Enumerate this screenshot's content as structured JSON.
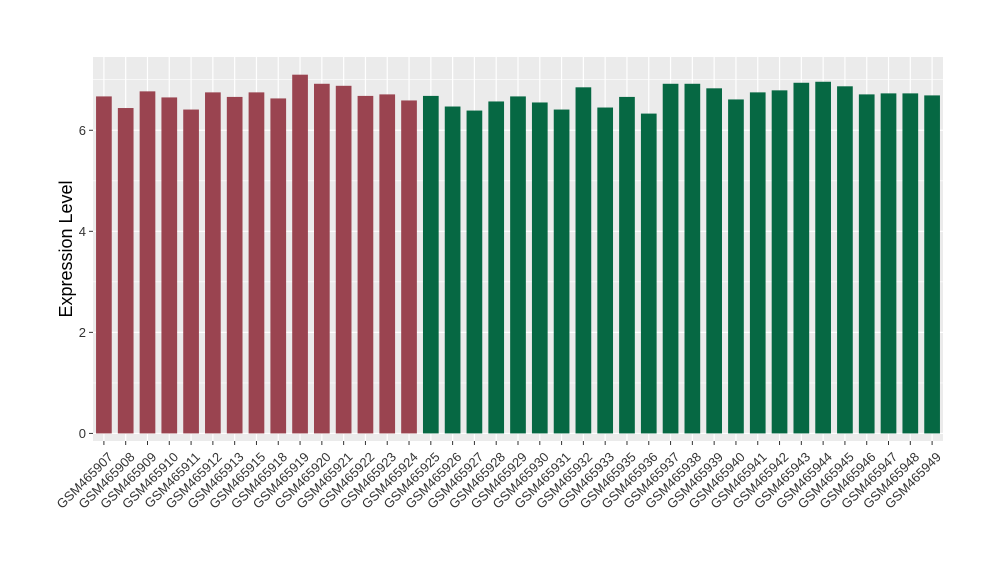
{
  "chart_data": {
    "type": "bar",
    "ylabel": "Expression Level",
    "xlabel": "",
    "ylim": [
      -0.15,
      7.45
    ],
    "yticks": [
      0,
      2,
      4,
      6
    ],
    "grid": true,
    "background_color": "#ebebeb",
    "grid_color": "#ffffff",
    "series_colors": {
      "group1": "#9a4450",
      "group2": "#066843"
    },
    "categories": [
      "GSM465907",
      "GSM465908",
      "GSM465909",
      "GSM465910",
      "GSM465911",
      "GSM465912",
      "GSM465913",
      "GSM465915",
      "GSM465918",
      "GSM465919",
      "GSM465920",
      "GSM465921",
      "GSM465922",
      "GSM465923",
      "GSM465924",
      "GSM465925",
      "GSM465926",
      "GSM465927",
      "GSM465928",
      "GSM465929",
      "GSM465930",
      "GSM465931",
      "GSM465932",
      "GSM465933",
      "GSM465935",
      "GSM465936",
      "GSM465937",
      "GSM465938",
      "GSM465939",
      "GSM465940",
      "GSM465941",
      "GSM465942",
      "GSM465943",
      "GSM465944",
      "GSM465945",
      "GSM465946",
      "GSM465947",
      "GSM465948",
      "GSM465949"
    ],
    "values": [
      6.67,
      6.44,
      6.77,
      6.65,
      6.41,
      6.75,
      6.66,
      6.75,
      6.63,
      7.1,
      6.92,
      6.88,
      6.68,
      6.71,
      6.59,
      6.68,
      6.47,
      6.39,
      6.57,
      6.67,
      6.55,
      6.41,
      6.85,
      6.45,
      6.66,
      6.33,
      6.92,
      6.92,
      6.83,
      6.61,
      6.75,
      6.79,
      6.94,
      6.96,
      6.87,
      6.71,
      6.73,
      6.73,
      6.69
    ],
    "groups": [
      1,
      1,
      1,
      1,
      1,
      1,
      1,
      1,
      1,
      1,
      1,
      1,
      1,
      1,
      1,
      2,
      2,
      2,
      2,
      2,
      2,
      2,
      2,
      2,
      2,
      2,
      2,
      2,
      2,
      2,
      2,
      2,
      2,
      2,
      2,
      2,
      2,
      2,
      2
    ]
  }
}
